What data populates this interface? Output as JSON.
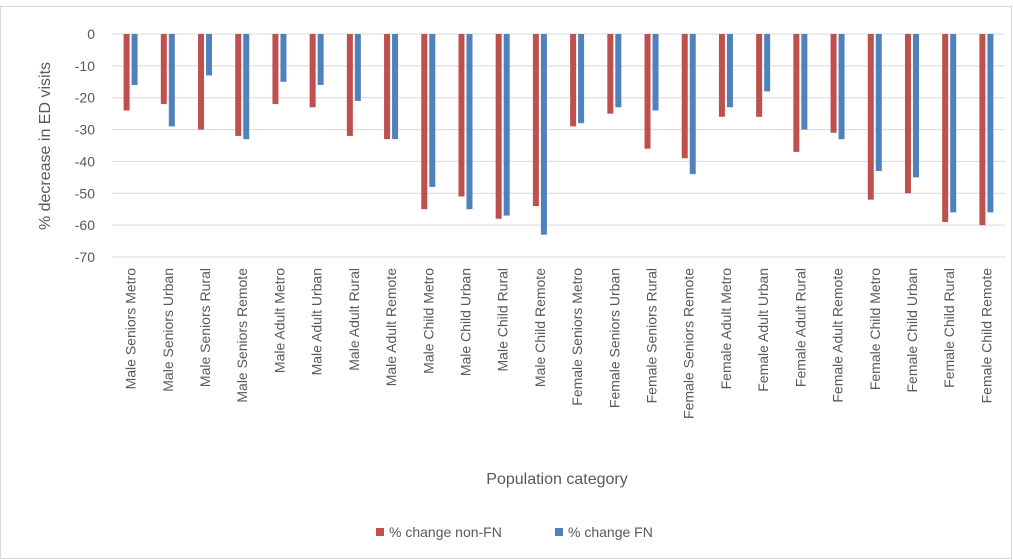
{
  "chart_data": {
    "type": "bar",
    "title": "",
    "xlabel": "Population category",
    "ylabel": "% decrease in ED visits",
    "ylim": [
      -70,
      0
    ],
    "yticks": [
      0,
      -10,
      -20,
      -30,
      -40,
      -50,
      -60,
      -70
    ],
    "grid": true,
    "legend_position": "bottom",
    "categories": [
      "Male Seniors Metro",
      "Male Seniors Urban",
      "Male Seniors Rural",
      "Male Seniors Remote",
      "Male Adult Metro",
      "Male Adult Urban",
      "Male Adult Rural",
      "Male Adult Remote",
      "Male Child Metro",
      "Male Child Urban",
      "Male Child Rural",
      "Male Child Remote",
      "Female Seniors Metro",
      "Female Seniors Urban",
      "Female Seniors Rural",
      "Female Seniors Remote",
      "Female Adult Metro",
      "Female Adult Urban",
      "Female Adult Rural",
      "Female Adult Remote",
      "Female Child Metro",
      "Female Child Urban",
      "Female Child Rural",
      "Female Child Remote"
    ],
    "series": [
      {
        "name": "% change non-FN",
        "color": "#c0504d",
        "values": [
          -24,
          -22,
          -30,
          -32,
          -22,
          -23,
          -32,
          -33,
          -55,
          -51,
          -58,
          -54,
          -29,
          -25,
          -36,
          -39,
          -26,
          -26,
          -37,
          -31,
          -52,
          -50,
          -59,
          -60
        ]
      },
      {
        "name": "% change FN",
        "color": "#4f81bd",
        "values": [
          -16,
          -29,
          -13,
          -33,
          -15,
          -16,
          -21,
          -33,
          -48,
          -55,
          -57,
          -63,
          -28,
          -23,
          -24,
          -44,
          -23,
          -18,
          -30,
          -33,
          -43,
          -45,
          -56,
          -56
        ]
      }
    ]
  }
}
